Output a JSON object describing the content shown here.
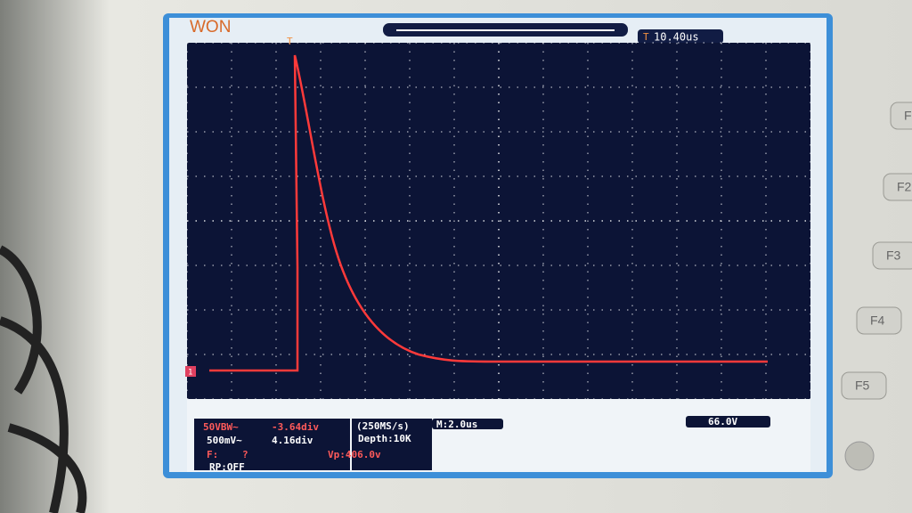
{
  "brand": "WON",
  "top_bar": {
    "trigger_marker": "T",
    "time_offset": "10.40us"
  },
  "channel_marker": "1",
  "status": {
    "ch1_scale": "50VBW~",
    "ch1_position": "-3.64div",
    "ch2_scale": "500mV~",
    "ch2_position": "4.16div",
    "sample_rate": "(250MS/s)",
    "depth": "Depth:10K",
    "timebase": "M:2.0us",
    "trigger_level": "66.0V",
    "frequency_label": "F:",
    "frequency_value": "?",
    "peak_voltage": "Vp:406.0v",
    "record": "RP:OFF"
  },
  "buttons": [
    "F",
    "F2",
    "F3",
    "F4",
    "F5"
  ]
}
